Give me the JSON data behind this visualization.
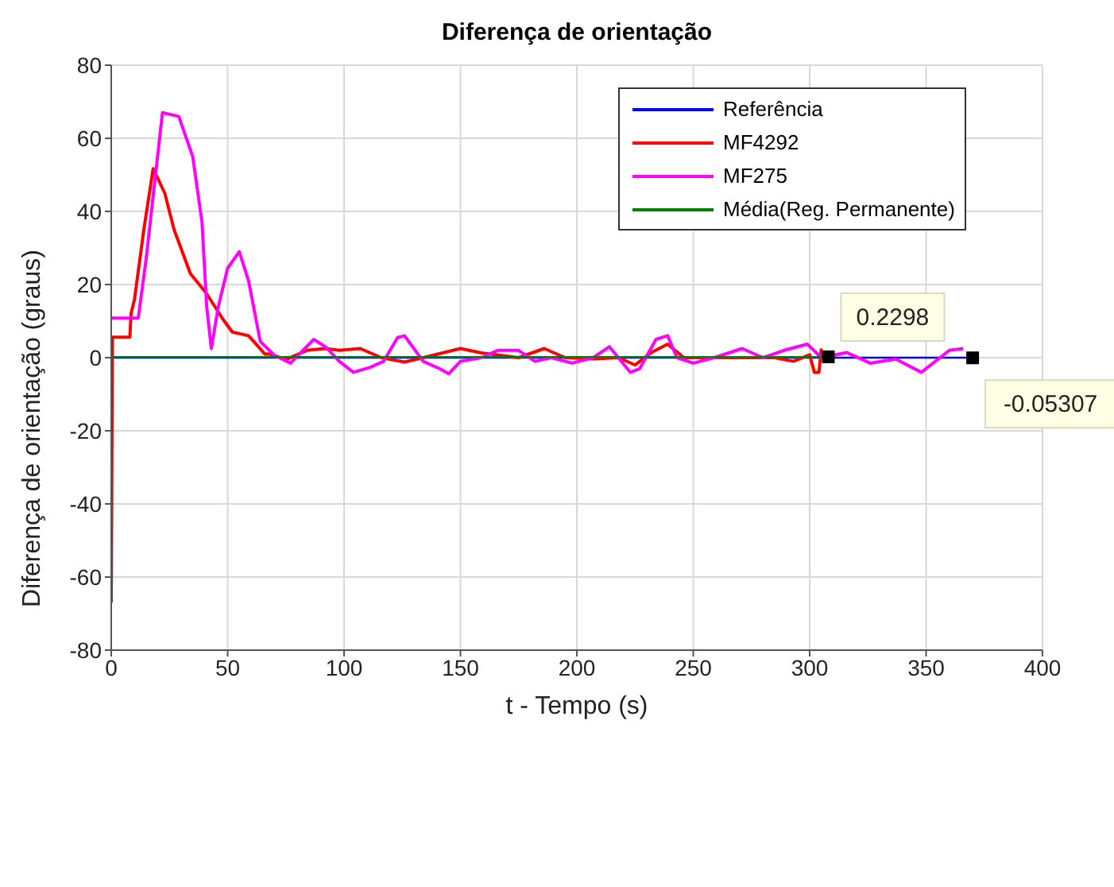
{
  "chart_data": {
    "type": "line",
    "title": "Diferença de orientação",
    "xlabel": "t - Tempo (s)",
    "ylabel": "Diferença de orientação (graus)",
    "xlim": [
      0,
      400
    ],
    "xticks": [
      0,
      50,
      100,
      150,
      200,
      250,
      300,
      350,
      400
    ],
    "ylim": [
      -80,
      80
    ],
    "yticks": [
      -80,
      -60,
      -40,
      -20,
      0,
      20,
      40,
      60,
      80
    ],
    "grid": true,
    "legend": "top right",
    "line_style": "solid",
    "annotations": [
      {
        "text": "0.2298",
        "x": 308,
        "y": 0.2298
      },
      {
        "text": "-0.05307",
        "x": 370,
        "y": -0.05307
      }
    ],
    "series": [
      {
        "name": "Referência",
        "color": "#0000ff",
        "x": [
          0,
          370
        ],
        "values": [
          0,
          0
        ]
      },
      {
        "name": "MF4292",
        "color": "#ff0000",
        "x": [
          0,
          0.5,
          1,
          8,
          8.5,
          10,
          14,
          18,
          23,
          27,
          34,
          41,
          48,
          52,
          59,
          66,
          68,
          75,
          84,
          92,
          98,
          107,
          116,
          126,
          134,
          150,
          159,
          175,
          186,
          195,
          207,
          218,
          225,
          232,
          239,
          246,
          285,
          293,
          300,
          302,
          304,
          305
        ],
        "values": [
          -67,
          5.6,
          5.6,
          5.6,
          12,
          16,
          35,
          51.7,
          45,
          35,
          23,
          17.5,
          10.5,
          7,
          6,
          1,
          1,
          -0.5,
          2,
          2.5,
          2,
          2.5,
          0,
          -1.2,
          0,
          2.5,
          1.3,
          0,
          2.5,
          0,
          -0.3,
          0,
          -2,
          1.4,
          3.7,
          0,
          0,
          -1,
          0.8,
          -4,
          -4,
          2.5
        ]
      },
      {
        "name": "MF275",
        "color": "#ff00ff",
        "x": [
          0,
          11.6,
          15,
          22,
          29,
          35,
          39,
          41,
          43,
          46,
          50,
          55,
          59,
          64,
          70,
          77,
          87,
          92,
          98,
          104,
          111,
          117,
          123,
          126,
          130,
          134,
          141,
          145,
          150,
          159,
          166,
          175,
          182,
          189,
          198,
          207,
          214,
          223,
          227,
          234,
          239,
          243,
          250,
          259,
          271,
          280,
          289,
          299,
          305,
          316,
          326,
          337,
          348,
          360,
          366
        ],
        "values": [
          10.8,
          10.8,
          27,
          67,
          66,
          55,
          37,
          14,
          2.5,
          14,
          24.5,
          29,
          21,
          4.5,
          0.7,
          -1.5,
          5,
          3,
          -1,
          -4,
          -2.7,
          -1,
          5.5,
          6,
          2.5,
          -1,
          -3,
          -4.4,
          -1,
          0,
          2,
          2,
          -1,
          0,
          -1.5,
          0,
          3,
          -4,
          -3,
          5,
          6,
          0,
          -1.5,
          0,
          2.5,
          0,
          2,
          3.7,
          0,
          1.4,
          -1.5,
          -0.4,
          -4,
          2,
          2.5
        ]
      },
      {
        "name": "Média(Reg. Permanente)",
        "color": "#008000",
        "x": [
          0,
          308
        ],
        "values": [
          0.2,
          0.2
        ]
      }
    ]
  }
}
